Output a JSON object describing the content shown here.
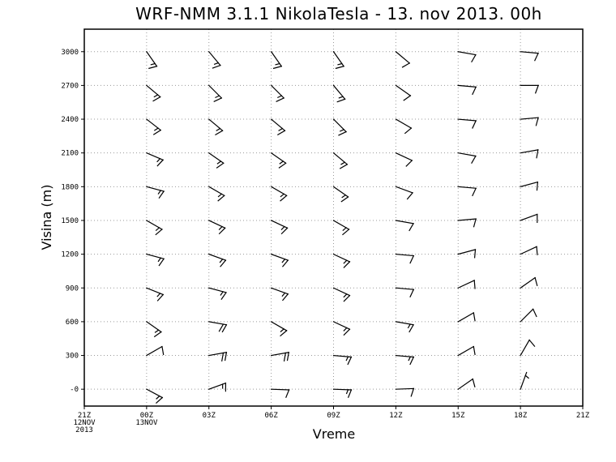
{
  "chart_data": {
    "type": "wind-barb",
    "title": "WRF-NMM 3.1.1 NikolaTesla - 13. nov 2013. 00h",
    "xlabel": "Vreme",
    "ylabel": "Visina (m)",
    "x_ticks": [
      {
        "lines": [
          "21Z",
          "12NOV",
          "2013"
        ]
      },
      {
        "lines": [
          "00Z",
          "13NOV"
        ]
      },
      {
        "lines": [
          "03Z"
        ]
      },
      {
        "lines": [
          "06Z"
        ]
      },
      {
        "lines": [
          "09Z"
        ]
      },
      {
        "lines": [
          "12Z"
        ]
      },
      {
        "lines": [
          "15Z"
        ]
      },
      {
        "lines": [
          "18Z"
        ]
      },
      {
        "lines": [
          "21Z"
        ]
      }
    ],
    "y_ticks": [
      "-0",
      "300",
      "600",
      "900",
      "1200",
      "1500",
      "1800",
      "2100",
      "2400",
      "2700",
      "3000"
    ],
    "ylim": [
      -150,
      3200
    ],
    "heights": [
      0,
      300,
      600,
      900,
      1200,
      1500,
      1800,
      2100,
      2400,
      2700,
      3000
    ],
    "times_index": [
      1,
      2,
      3,
      4,
      5,
      6,
      7
    ],
    "barbs": [
      [
        [
          118,
          15
        ],
        [
          60,
          10
        ],
        [
          125,
          15
        ],
        [
          112,
          15
        ],
        [
          105,
          15
        ],
        [
          120,
          15
        ],
        [
          105,
          15
        ],
        [
          113,
          15
        ],
        [
          128,
          15
        ],
        [
          130,
          15
        ],
        [
          145,
          15
        ]
      ],
      [
        [
          70,
          15
        ],
        [
          80,
          20
        ],
        [
          100,
          20
        ],
        [
          105,
          15
        ],
        [
          110,
          15
        ],
        [
          115,
          15
        ],
        [
          120,
          15
        ],
        [
          125,
          15
        ],
        [
          130,
          15
        ],
        [
          135,
          15
        ],
        [
          140,
          15
        ]
      ],
      [
        [
          92,
          10
        ],
        [
          80,
          20
        ],
        [
          120,
          15
        ],
        [
          110,
          15
        ],
        [
          110,
          15
        ],
        [
          115,
          15
        ],
        [
          120,
          15
        ],
        [
          125,
          15
        ],
        [
          130,
          15
        ],
        [
          135,
          15
        ],
        [
          145,
          15
        ]
      ],
      [
        [
          92,
          15
        ],
        [
          95,
          15
        ],
        [
          115,
          15
        ],
        [
          115,
          15
        ],
        [
          115,
          15
        ],
        [
          120,
          15
        ],
        [
          125,
          15
        ],
        [
          130,
          15
        ],
        [
          135,
          15
        ],
        [
          140,
          15
        ],
        [
          145,
          15
        ]
      ],
      [
        [
          88,
          10
        ],
        [
          95,
          15
        ],
        [
          100,
          15
        ],
        [
          95,
          10
        ],
        [
          95,
          10
        ],
        [
          100,
          10
        ],
        [
          110,
          10
        ],
        [
          115,
          10
        ],
        [
          120,
          10
        ],
        [
          125,
          10
        ],
        [
          130,
          10
        ]
      ],
      [
        [
          55,
          10
        ],
        [
          60,
          10
        ],
        [
          60,
          10
        ],
        [
          65,
          10
        ],
        [
          75,
          10
        ],
        [
          85,
          10
        ],
        [
          95,
          10
        ],
        [
          100,
          10
        ],
        [
          95,
          10
        ],
        [
          95,
          10
        ],
        [
          100,
          10
        ]
      ],
      [
        [
          20,
          5
        ],
        [
          30,
          10
        ],
        [
          45,
          10
        ],
        [
          55,
          10
        ],
        [
          65,
          10
        ],
        [
          70,
          10
        ],
        [
          75,
          10
        ],
        [
          80,
          10
        ],
        [
          85,
          10
        ],
        [
          90,
          10
        ],
        [
          95,
          10
        ]
      ]
    ]
  }
}
